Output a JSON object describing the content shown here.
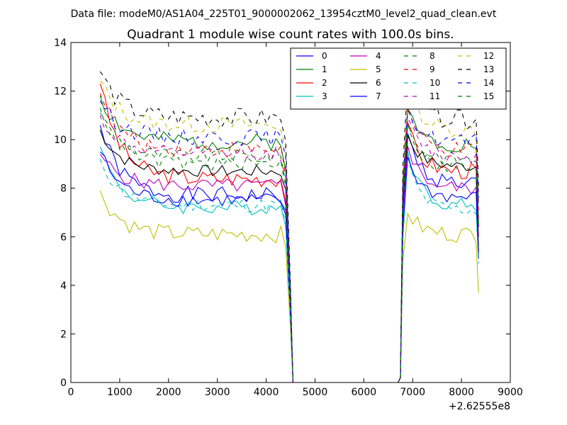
{
  "suptitle": "Data file: modeM0/AS1A04_225T01_9000002062_13954cztM0_level2_quad_clean.evt",
  "chart_data": {
    "type": "line",
    "title": "Quadrant 1 module wise count rates with 100.0s bins.",
    "xlabel": "",
    "ylabel": "",
    "xlim": [
      0,
      9000
    ],
    "ylim": [
      0,
      14
    ],
    "xticks": [
      "0",
      "1000",
      "2000",
      "3000",
      "4000",
      "5000",
      "6000",
      "7000",
      "8000",
      "9000"
    ],
    "yticks": [
      "0",
      "2",
      "4",
      "6",
      "8",
      "10",
      "12",
      "14"
    ],
    "x_offset_label": "+2.62555e8",
    "legend_position": "top-right",
    "legend_columns": 4,
    "x_segment1": {
      "start": 600,
      "end": 4300,
      "step": 100
    },
    "x_drop": [
      4400,
      4500,
      4550
    ],
    "x_gap": [
      4600,
      6700
    ],
    "x_rise": [
      6750,
      6800
    ],
    "x_segment2": {
      "start": 6900,
      "end": 8300,
      "step": 100
    },
    "x_final": 8350,
    "series": [
      {
        "name": "0",
        "color": "#0000ff",
        "dash": false,
        "first": 10.6,
        "base1": 7.7,
        "jitter": 0.35,
        "peak2": 10.2,
        "base2": 8.2,
        "end": 6.4,
        "seed": 1
      },
      {
        "name": "1",
        "color": "#008000",
        "dash": false,
        "first": 11.8,
        "base1": 9.9,
        "jitter": 0.35,
        "peak2": 11.2,
        "base2": 9.8,
        "end": 7.4,
        "seed": 2
      },
      {
        "name": "2",
        "color": "#ff0000",
        "dash": false,
        "first": 12.3,
        "base1": 8.4,
        "jitter": 0.35,
        "peak2": 10.6,
        "base2": 8.7,
        "end": 6.8,
        "seed": 3
      },
      {
        "name": "3",
        "color": "#00bfbf",
        "dash": false,
        "first": 9.7,
        "base1": 7.2,
        "jitter": 0.3,
        "peak2": 9.6,
        "base2": 7.3,
        "end": 5.3,
        "seed": 4
      },
      {
        "name": "4",
        "color": "#bf00bf",
        "dash": false,
        "first": 9.4,
        "base1": 8.1,
        "jitter": 0.3,
        "peak2": 9.8,
        "base2": 8.0,
        "end": 6.0,
        "seed": 5
      },
      {
        "name": "5",
        "color": "#bfbf00",
        "dash": false,
        "first": 7.9,
        "base1": 6.1,
        "jitter": 0.35,
        "peak2": 7.0,
        "base2": 6.1,
        "end": 3.7,
        "seed": 6
      },
      {
        "name": "6",
        "color": "#000000",
        "dash": false,
        "first": 10.4,
        "base1": 8.7,
        "jitter": 0.25,
        "peak2": 10.2,
        "base2": 8.9,
        "end": 5.4,
        "seed": 7
      },
      {
        "name": "7",
        "color": "#0000ff",
        "dash": false,
        "first": 9.5,
        "base1": 7.5,
        "jitter": 0.3,
        "peak2": 9.3,
        "base2": 7.6,
        "end": 5.1,
        "seed": 8
      },
      {
        "name": "8",
        "color": "#008000",
        "dash": true,
        "first": 11.1,
        "base1": 9.3,
        "jitter": 0.3,
        "peak2": 10.6,
        "base2": 9.2,
        "end": 6.6,
        "seed": 9
      },
      {
        "name": "9",
        "color": "#ff0000",
        "dash": true,
        "first": 11.9,
        "base1": 9.6,
        "jitter": 0.35,
        "peak2": 11.2,
        "base2": 9.5,
        "end": 6.9,
        "seed": 10
      },
      {
        "name": "10",
        "color": "#00bfbf",
        "dash": true,
        "first": 9.2,
        "base1": 7.3,
        "jitter": 0.3,
        "peak2": 9.1,
        "base2": 7.1,
        "end": 4.9,
        "seed": 11
      },
      {
        "name": "11",
        "color": "#bf00bf",
        "dash": true,
        "first": 11.0,
        "base1": 9.4,
        "jitter": 0.3,
        "peak2": 10.8,
        "base2": 9.3,
        "end": 6.7,
        "seed": 12
      },
      {
        "name": "12",
        "color": "#bfbf00",
        "dash": true,
        "first": 12.4,
        "base1": 10.6,
        "jitter": 0.35,
        "peak2": 12.2,
        "base2": 10.4,
        "end": 7.9,
        "seed": 13
      },
      {
        "name": "13",
        "color": "#000000",
        "dash": true,
        "first": 12.8,
        "base1": 10.9,
        "jitter": 0.4,
        "peak2": 12.6,
        "base2": 10.8,
        "end": 8.1,
        "seed": 14
      },
      {
        "name": "14",
        "color": "#0000ff",
        "dash": true,
        "first": 11.6,
        "base1": 10.1,
        "jitter": 0.35,
        "peak2": 11.4,
        "base2": 9.9,
        "end": 7.6,
        "seed": 15
      },
      {
        "name": "15",
        "color": "#008000",
        "dash": true,
        "first": 11.3,
        "base1": 9.0,
        "jitter": 0.3,
        "peak2": 10.7,
        "base2": 8.8,
        "end": 6.5,
        "seed": 16
      }
    ]
  }
}
